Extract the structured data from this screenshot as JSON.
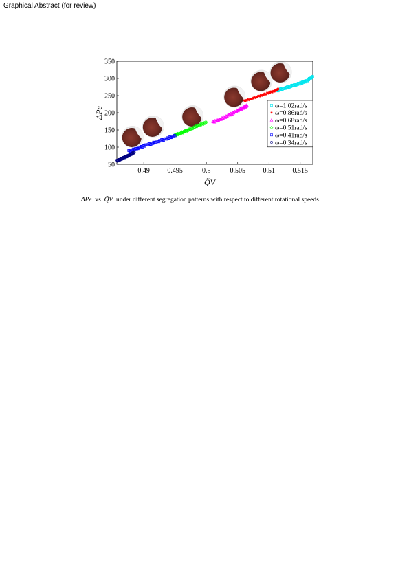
{
  "header": {
    "text": "Graphical Abstract (for review)"
  },
  "caption": {
    "yvar": "ΔPe",
    "vs": "vs",
    "xvar": "Q̃V",
    "text": "under different segregation patterns with respect to different rotational speeds."
  },
  "chart_data": {
    "type": "scatter",
    "xlabel": "Q̃V",
    "ylabel": "ΔPe",
    "xlim": [
      0.4857,
      0.517
    ],
    "ylim": [
      50,
      350
    ],
    "xticks": [
      0.49,
      0.495,
      0.5,
      0.505,
      0.51,
      0.515
    ],
    "xtick_labels": [
      "0.49",
      "0.495",
      "0.5",
      "0.505",
      "0.51",
      "0.515"
    ],
    "yticks": [
      50,
      100,
      150,
      200,
      250,
      300,
      350
    ],
    "ytick_labels": [
      "50",
      "100",
      "150",
      "200",
      "250",
      "300",
      "350"
    ],
    "grid": false,
    "legend_position": "bottom-right",
    "series": [
      {
        "name": "ω=1.02rad/s",
        "marker": "square",
        "color": "#00e5ee",
        "x": [
          0.5112,
          0.5125,
          0.5138,
          0.515,
          0.516,
          0.517
        ],
        "y": [
          264,
          272,
          279,
          286,
          293,
          305
        ]
      },
      {
        "name": "ω=0.86rad/s",
        "marker": "star",
        "color": "#ff0000",
        "x": [
          0.506,
          0.5072,
          0.5084,
          0.5096,
          0.5108,
          0.5115
        ],
        "y": [
          234,
          241,
          248,
          256,
          263,
          269
        ]
      },
      {
        "name": "ω=0.68rad/s",
        "marker": "triangle",
        "color": "#ff00ff",
        "x": [
          0.501,
          0.5023,
          0.5036,
          0.5048,
          0.5058,
          0.5065
        ],
        "y": [
          173,
          182,
          193,
          205,
          214,
          221
        ]
      },
      {
        "name": "ω=0.51rad/s",
        "marker": "diamond",
        "color": "#00ff00",
        "x": [
          0.495,
          0.4958,
          0.4966,
          0.4975,
          0.4988,
          0.5
        ],
        "y": [
          135,
          140,
          146,
          153,
          164,
          172
        ]
      },
      {
        "name": "ω=0.41rad/s",
        "marker": "square",
        "color": "#0000ff",
        "x": [
          0.4876,
          0.489,
          0.4905,
          0.492,
          0.4935,
          0.495
        ],
        "y": [
          88,
          97,
          106,
          115,
          124,
          133
        ]
      },
      {
        "name": "ω=0.34rad/s",
        "marker": "circle",
        "color": "#000080",
        "x": [
          0.4857,
          0.4862,
          0.4868,
          0.4874,
          0.488,
          0.4885
        ],
        "y": [
          60,
          64,
          69,
          74,
          80,
          85
        ]
      }
    ],
    "insets": [
      {
        "label": "drum-0.34",
        "x": 0.4882,
        "y": 130
      },
      {
        "label": "drum-0.41",
        "x": 0.4915,
        "y": 160
      },
      {
        "label": "drum-0.51",
        "x": 0.4978,
        "y": 190
      },
      {
        "label": "drum-0.68",
        "x": 0.5045,
        "y": 247
      },
      {
        "label": "drum-0.86",
        "x": 0.5088,
        "y": 293
      },
      {
        "label": "drum-1.02",
        "x": 0.5119,
        "y": 318
      }
    ]
  }
}
